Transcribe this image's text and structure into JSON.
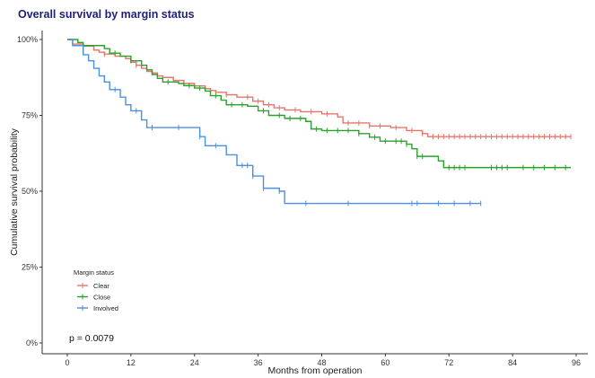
{
  "title": "Overall survival by margin status",
  "chart_data": {
    "type": "line",
    "title": "Overall survival by margin status",
    "xlabel": "Months from operation",
    "ylabel": "Cumulative survival probability",
    "xlim": [
      0,
      96
    ],
    "ylim": [
      0,
      1
    ],
    "xticks": [
      "0",
      "12",
      "24",
      "36",
      "48",
      "60",
      "72",
      "84",
      "96"
    ],
    "yticks": [
      "0%",
      "25%",
      "50%",
      "75%",
      "100%"
    ],
    "grid": false,
    "legend_title": "Margin status",
    "legend_position": "bottom-left",
    "annotation": "p = 0.0079",
    "series": [
      {
        "name": "Clear",
        "color": "#e8756b",
        "points": [
          [
            0,
            1.0
          ],
          [
            1,
            0.985
          ],
          [
            3,
            0.978
          ],
          [
            5,
            0.965
          ],
          [
            6,
            0.958
          ],
          [
            7,
            0.952
          ],
          [
            9,
            0.945
          ],
          [
            11,
            0.937
          ],
          [
            12,
            0.925
          ],
          [
            13,
            0.915
          ],
          [
            14,
            0.905
          ],
          [
            15,
            0.895
          ],
          [
            16,
            0.89
          ],
          [
            17,
            0.88
          ],
          [
            18,
            0.875
          ],
          [
            20,
            0.865
          ],
          [
            22,
            0.855
          ],
          [
            24,
            0.847
          ],
          [
            26,
            0.838
          ],
          [
            27,
            0.832
          ],
          [
            28,
            0.826
          ],
          [
            30,
            0.818
          ],
          [
            32,
            0.81
          ],
          [
            35,
            0.797
          ],
          [
            37,
            0.785
          ],
          [
            39,
            0.775
          ],
          [
            41,
            0.768
          ],
          [
            44,
            0.762
          ],
          [
            46,
            0.762
          ],
          [
            48,
            0.755
          ],
          [
            51,
            0.745
          ],
          [
            52,
            0.725
          ],
          [
            56,
            0.725
          ],
          [
            57,
            0.715
          ],
          [
            61,
            0.71
          ],
          [
            64,
            0.7
          ],
          [
            67,
            0.69
          ],
          [
            68,
            0.68
          ],
          [
            95,
            0.68
          ]
        ],
        "censored_x": [
          7,
          13,
          16,
          22,
          26,
          30,
          34,
          36,
          38,
          40,
          43,
          46,
          49,
          53,
          55,
          57,
          59,
          62,
          65,
          67,
          69,
          70,
          71,
          72,
          73,
          74,
          75,
          76,
          77,
          78,
          79,
          80,
          81,
          82,
          83,
          84,
          85,
          86,
          87,
          88,
          89,
          90,
          91,
          92,
          93,
          94,
          95
        ]
      },
      {
        "name": "Close",
        "color": "#2ca02c",
        "points": [
          [
            0,
            1.0
          ],
          [
            2,
            0.99
          ],
          [
            3,
            0.98
          ],
          [
            7,
            0.97
          ],
          [
            8,
            0.955
          ],
          [
            10,
            0.945
          ],
          [
            12,
            0.93
          ],
          [
            14,
            0.915
          ],
          [
            15,
            0.9
          ],
          [
            16,
            0.885
          ],
          [
            17,
            0.872
          ],
          [
            18,
            0.86
          ],
          [
            21,
            0.855
          ],
          [
            22,
            0.848
          ],
          [
            24,
            0.84
          ],
          [
            26,
            0.83
          ],
          [
            27,
            0.815
          ],
          [
            29,
            0.8
          ],
          [
            30,
            0.785
          ],
          [
            34,
            0.78
          ],
          [
            36,
            0.765
          ],
          [
            38,
            0.75
          ],
          [
            41,
            0.74
          ],
          [
            45,
            0.73
          ],
          [
            46,
            0.705
          ],
          [
            48,
            0.7
          ],
          [
            52,
            0.7
          ],
          [
            55,
            0.69
          ],
          [
            57,
            0.678
          ],
          [
            59,
            0.665
          ],
          [
            64,
            0.655
          ],
          [
            65,
            0.64
          ],
          [
            66,
            0.615
          ],
          [
            70,
            0.6
          ],
          [
            71,
            0.578
          ],
          [
            95,
            0.578
          ]
        ],
        "censored_x": [
          9,
          12,
          19,
          23,
          25,
          28,
          31,
          33,
          37,
          40,
          42,
          44,
          47,
          49,
          51,
          53,
          55,
          58,
          60,
          62,
          63,
          64,
          66,
          67,
          72,
          73,
          74,
          75,
          80,
          81,
          82,
          83,
          86,
          88,
          90,
          92,
          94
        ]
      },
      {
        "name": "Involved",
        "color": "#4a90e2",
        "points": [
          [
            0,
            1.0
          ],
          [
            1,
            0.98
          ],
          [
            3,
            0.95
          ],
          [
            4,
            0.93
          ],
          [
            5,
            0.905
          ],
          [
            6,
            0.88
          ],
          [
            7,
            0.86
          ],
          [
            8,
            0.835
          ],
          [
            10,
            0.81
          ],
          [
            11,
            0.785
          ],
          [
            12,
            0.765
          ],
          [
            14,
            0.735
          ],
          [
            15,
            0.71
          ],
          [
            25,
            0.68
          ],
          [
            26,
            0.65
          ],
          [
            30,
            0.62
          ],
          [
            32,
            0.585
          ],
          [
            35,
            0.55
          ],
          [
            37,
            0.51
          ],
          [
            40,
            0.5
          ],
          [
            41,
            0.46
          ],
          [
            78,
            0.46
          ]
        ],
        "censored_x": [
          9,
          13,
          16,
          21,
          25,
          28,
          33,
          34,
          35,
          37,
          40,
          45,
          53,
          65,
          66,
          70,
          73,
          76,
          78
        ]
      }
    ]
  }
}
